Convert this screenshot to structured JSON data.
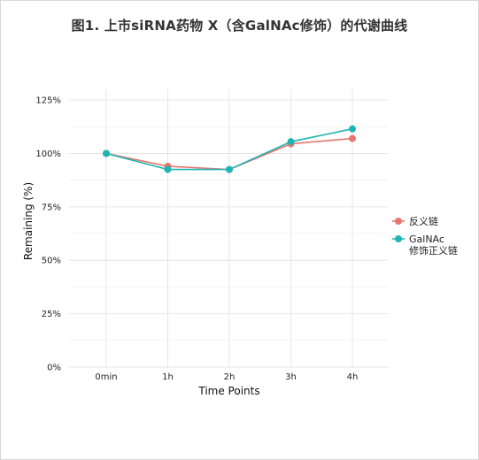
{
  "title": "图1. 上市siRNA药物 X（含GalNAc修饰）的代谢曲线",
  "chart_data": {
    "type": "line",
    "title": "图1. 上市siRNA药物 X（含GalNAc修饰）的代谢曲线",
    "xlabel": "Time Points",
    "ylabel": "Remaining (%)",
    "categories": [
      "0min",
      "1h",
      "2h",
      "3h",
      "4h"
    ],
    "yticks": [
      "0%",
      "25%",
      "50%",
      "75%",
      "100%",
      "125%"
    ],
    "ylim": [
      0,
      130
    ],
    "grid": true,
    "legend_position": "right",
    "series": [
      {
        "name": "反义链",
        "values": [
          100,
          94,
          92.5,
          104.5,
          107
        ],
        "color": "#E8766E"
      },
      {
        "name": "GalNAc修饰正义链",
        "name_lines": [
          "GalNAc",
          "修饰正义链"
        ],
        "values": [
          100,
          92.5,
          92.5,
          105.5,
          111.5
        ],
        "color": "#1FB5B5"
      }
    ]
  }
}
